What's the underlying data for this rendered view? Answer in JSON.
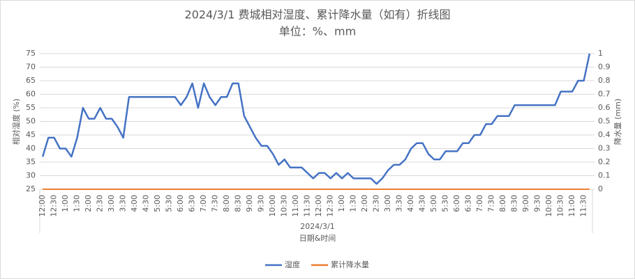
{
  "chart_data": {
    "type": "line",
    "title": "2024/3/1 费城相对湿度、累计降水量（如有）折线图",
    "subtitle": "单位：%、mm",
    "x_group_label": "2024/3/1",
    "x_label": "日期&时间",
    "y_label": "相对湿度 (%)",
    "y2_label": "降水量 (mm)",
    "categories": [
      "12:00",
      null,
      "12:30",
      null,
      "1:00",
      null,
      "1:30",
      null,
      "2:00",
      null,
      "2:30",
      null,
      "3:00",
      null,
      "3:30",
      null,
      "4:00",
      null,
      "4:30",
      null,
      "5:00",
      null,
      "5:30",
      null,
      "6:00",
      null,
      "6:30",
      null,
      "7:00",
      null,
      "7:30",
      null,
      "8:00",
      null,
      "8:30",
      null,
      "9:00",
      null,
      "9:30",
      null,
      "10:00",
      null,
      "10:30",
      null,
      "11:00",
      null,
      "11:30",
      null,
      "12:00",
      null,
      "12:30",
      null,
      "1:00",
      null,
      "1:30",
      null,
      "2:00",
      null,
      "2:30",
      null,
      "3:00",
      null,
      "3:30",
      null,
      "4:00",
      null,
      "4:30",
      null,
      "5:00",
      null,
      "5:30",
      null,
      "6:00",
      null,
      "6:30",
      null,
      "7:00",
      null,
      "7:30",
      null,
      "8:00",
      null,
      "8:30",
      null,
      "9:00",
      null,
      "9:30",
      null,
      "10:00",
      null,
      "10:30",
      null,
      "11:00",
      null,
      "11:30",
      null
    ],
    "series": [
      {
        "name": "湿度",
        "color": "#4472c4",
        "axis": "y",
        "values": [
          37,
          44,
          44,
          40,
          40,
          37,
          44,
          55,
          51,
          51,
          55,
          51,
          51,
          48,
          44,
          59,
          59,
          59,
          59,
          59,
          59,
          59,
          59,
          59,
          56,
          59,
          64,
          55,
          64,
          59,
          56,
          59,
          59,
          64,
          64,
          52,
          48,
          44,
          41,
          41,
          38,
          34,
          36,
          33,
          33,
          33,
          31,
          29,
          31,
          31,
          29,
          31,
          29,
          31,
          29,
          29,
          29,
          29,
          27,
          29,
          32,
          34,
          34,
          36,
          40,
          42,
          42,
          38,
          36,
          36,
          39,
          39,
          39,
          42,
          42,
          45,
          45,
          49,
          49,
          52,
          52,
          52,
          56,
          56,
          56,
          56,
          56,
          56,
          56,
          56,
          61,
          61,
          61,
          65,
          65,
          75
        ]
      },
      {
        "name": "累计降水量",
        "color": "#ed7d31",
        "axis": "y2",
        "values": [
          0,
          0,
          0,
          0,
          0,
          0,
          0,
          0,
          0,
          0,
          0,
          0,
          0,
          0,
          0,
          0,
          0,
          0,
          0,
          0,
          0,
          0,
          0,
          0,
          0,
          0,
          0,
          0,
          0,
          0,
          0,
          0,
          0,
          0,
          0,
          0,
          0,
          0,
          0,
          0,
          0,
          0,
          0,
          0,
          0,
          0,
          0,
          0,
          0,
          0,
          0,
          0,
          0,
          0,
          0,
          0,
          0,
          0,
          0,
          0,
          0,
          0,
          0,
          0,
          0,
          0,
          0,
          0,
          0,
          0,
          0,
          0,
          0,
          0,
          0,
          0,
          0,
          0,
          0,
          0,
          0,
          0,
          0,
          0,
          0,
          0,
          0,
          0,
          0,
          0,
          0,
          0,
          0,
          0,
          0,
          0
        ]
      }
    ],
    "ylim": [
      25,
      75
    ],
    "yticks": [
      25,
      30,
      35,
      40,
      45,
      50,
      55,
      60,
      65,
      70,
      75
    ],
    "y2lim": [
      0,
      1
    ],
    "y2ticks": [
      0,
      0.1,
      0.2,
      0.3,
      0.4,
      0.5,
      0.6,
      0.7,
      0.8,
      0.9,
      1
    ],
    "grid": true,
    "legend": "bottom"
  }
}
